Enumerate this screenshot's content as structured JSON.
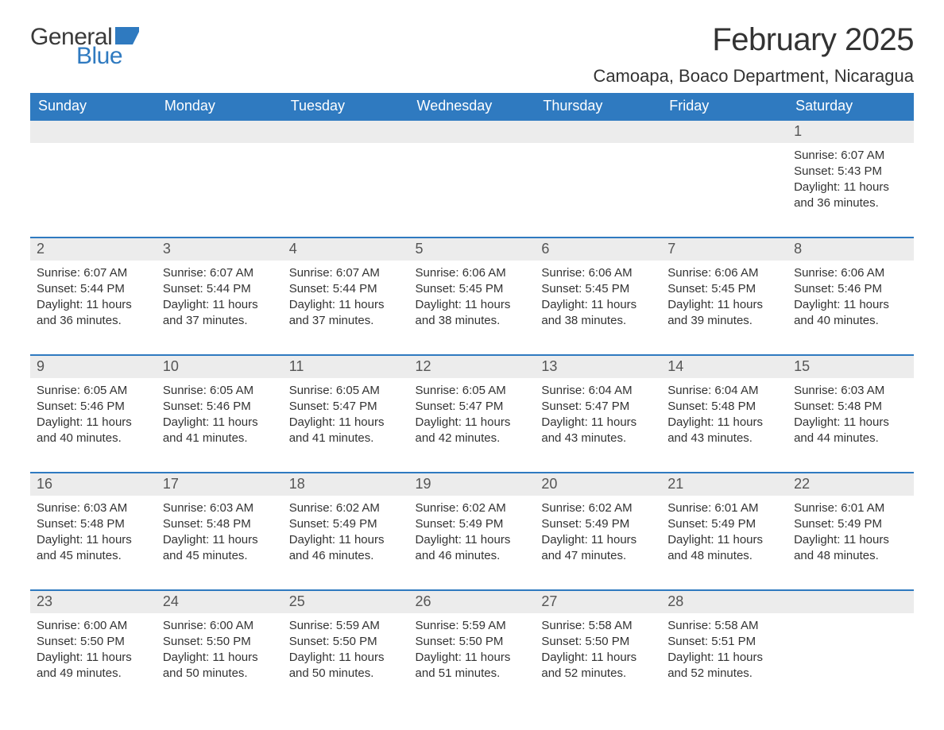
{
  "logo": {
    "general": "General",
    "blue": "Blue",
    "flag_color": "#2f7ac0"
  },
  "title": "February 2025",
  "location": "Camoapa, Boaco Department, Nicaragua",
  "theme": {
    "header_bg": "#2f7ac0",
    "header_text": "#ffffff",
    "row_border": "#2f7ac0",
    "daynum_bg": "#ececec",
    "daynum_text": "#555555",
    "body_text": "#333333",
    "page_bg": "#ffffff",
    "title_fontsize_pt": 30,
    "location_fontsize_pt": 16,
    "header_fontsize_pt": 14,
    "daynum_fontsize_pt": 14,
    "data_fontsize_pt": 11
  },
  "day_headers": [
    "Sunday",
    "Monday",
    "Tuesday",
    "Wednesday",
    "Thursday",
    "Friday",
    "Saturday"
  ],
  "labels": {
    "sunrise": "Sunrise:",
    "sunset": "Sunset:",
    "daylight": "Daylight:"
  },
  "weeks": [
    [
      null,
      null,
      null,
      null,
      null,
      null,
      {
        "day": "1",
        "sunrise": "6:07 AM",
        "sunset": "5:43 PM",
        "daylight_l1": "11 hours",
        "daylight_l2": "and 36 minutes."
      }
    ],
    [
      {
        "day": "2",
        "sunrise": "6:07 AM",
        "sunset": "5:44 PM",
        "daylight_l1": "11 hours",
        "daylight_l2": "and 36 minutes."
      },
      {
        "day": "3",
        "sunrise": "6:07 AM",
        "sunset": "5:44 PM",
        "daylight_l1": "11 hours",
        "daylight_l2": "and 37 minutes."
      },
      {
        "day": "4",
        "sunrise": "6:07 AM",
        "sunset": "5:44 PM",
        "daylight_l1": "11 hours",
        "daylight_l2": "and 37 minutes."
      },
      {
        "day": "5",
        "sunrise": "6:06 AM",
        "sunset": "5:45 PM",
        "daylight_l1": "11 hours",
        "daylight_l2": "and 38 minutes."
      },
      {
        "day": "6",
        "sunrise": "6:06 AM",
        "sunset": "5:45 PM",
        "daylight_l1": "11 hours",
        "daylight_l2": "and 38 minutes."
      },
      {
        "day": "7",
        "sunrise": "6:06 AM",
        "sunset": "5:45 PM",
        "daylight_l1": "11 hours",
        "daylight_l2": "and 39 minutes."
      },
      {
        "day": "8",
        "sunrise": "6:06 AM",
        "sunset": "5:46 PM",
        "daylight_l1": "11 hours",
        "daylight_l2": "and 40 minutes."
      }
    ],
    [
      {
        "day": "9",
        "sunrise": "6:05 AM",
        "sunset": "5:46 PM",
        "daylight_l1": "11 hours",
        "daylight_l2": "and 40 minutes."
      },
      {
        "day": "10",
        "sunrise": "6:05 AM",
        "sunset": "5:46 PM",
        "daylight_l1": "11 hours",
        "daylight_l2": "and 41 minutes."
      },
      {
        "day": "11",
        "sunrise": "6:05 AM",
        "sunset": "5:47 PM",
        "daylight_l1": "11 hours",
        "daylight_l2": "and 41 minutes."
      },
      {
        "day": "12",
        "sunrise": "6:05 AM",
        "sunset": "5:47 PM",
        "daylight_l1": "11 hours",
        "daylight_l2": "and 42 minutes."
      },
      {
        "day": "13",
        "sunrise": "6:04 AM",
        "sunset": "5:47 PM",
        "daylight_l1": "11 hours",
        "daylight_l2": "and 43 minutes."
      },
      {
        "day": "14",
        "sunrise": "6:04 AM",
        "sunset": "5:48 PM",
        "daylight_l1": "11 hours",
        "daylight_l2": "and 43 minutes."
      },
      {
        "day": "15",
        "sunrise": "6:03 AM",
        "sunset": "5:48 PM",
        "daylight_l1": "11 hours",
        "daylight_l2": "and 44 minutes."
      }
    ],
    [
      {
        "day": "16",
        "sunrise": "6:03 AM",
        "sunset": "5:48 PM",
        "daylight_l1": "11 hours",
        "daylight_l2": "and 45 minutes."
      },
      {
        "day": "17",
        "sunrise": "6:03 AM",
        "sunset": "5:48 PM",
        "daylight_l1": "11 hours",
        "daylight_l2": "and 45 minutes."
      },
      {
        "day": "18",
        "sunrise": "6:02 AM",
        "sunset": "5:49 PM",
        "daylight_l1": "11 hours",
        "daylight_l2": "and 46 minutes."
      },
      {
        "day": "19",
        "sunrise": "6:02 AM",
        "sunset": "5:49 PM",
        "daylight_l1": "11 hours",
        "daylight_l2": "and 46 minutes."
      },
      {
        "day": "20",
        "sunrise": "6:02 AM",
        "sunset": "5:49 PM",
        "daylight_l1": "11 hours",
        "daylight_l2": "and 47 minutes."
      },
      {
        "day": "21",
        "sunrise": "6:01 AM",
        "sunset": "5:49 PM",
        "daylight_l1": "11 hours",
        "daylight_l2": "and 48 minutes."
      },
      {
        "day": "22",
        "sunrise": "6:01 AM",
        "sunset": "5:49 PM",
        "daylight_l1": "11 hours",
        "daylight_l2": "and 48 minutes."
      }
    ],
    [
      {
        "day": "23",
        "sunrise": "6:00 AM",
        "sunset": "5:50 PM",
        "daylight_l1": "11 hours",
        "daylight_l2": "and 49 minutes."
      },
      {
        "day": "24",
        "sunrise": "6:00 AM",
        "sunset": "5:50 PM",
        "daylight_l1": "11 hours",
        "daylight_l2": "and 50 minutes."
      },
      {
        "day": "25",
        "sunrise": "5:59 AM",
        "sunset": "5:50 PM",
        "daylight_l1": "11 hours",
        "daylight_l2": "and 50 minutes."
      },
      {
        "day": "26",
        "sunrise": "5:59 AM",
        "sunset": "5:50 PM",
        "daylight_l1": "11 hours",
        "daylight_l2": "and 51 minutes."
      },
      {
        "day": "27",
        "sunrise": "5:58 AM",
        "sunset": "5:50 PM",
        "daylight_l1": "11 hours",
        "daylight_l2": "and 52 minutes."
      },
      {
        "day": "28",
        "sunrise": "5:58 AM",
        "sunset": "5:51 PM",
        "daylight_l1": "11 hours",
        "daylight_l2": "and 52 minutes."
      },
      null
    ]
  ]
}
